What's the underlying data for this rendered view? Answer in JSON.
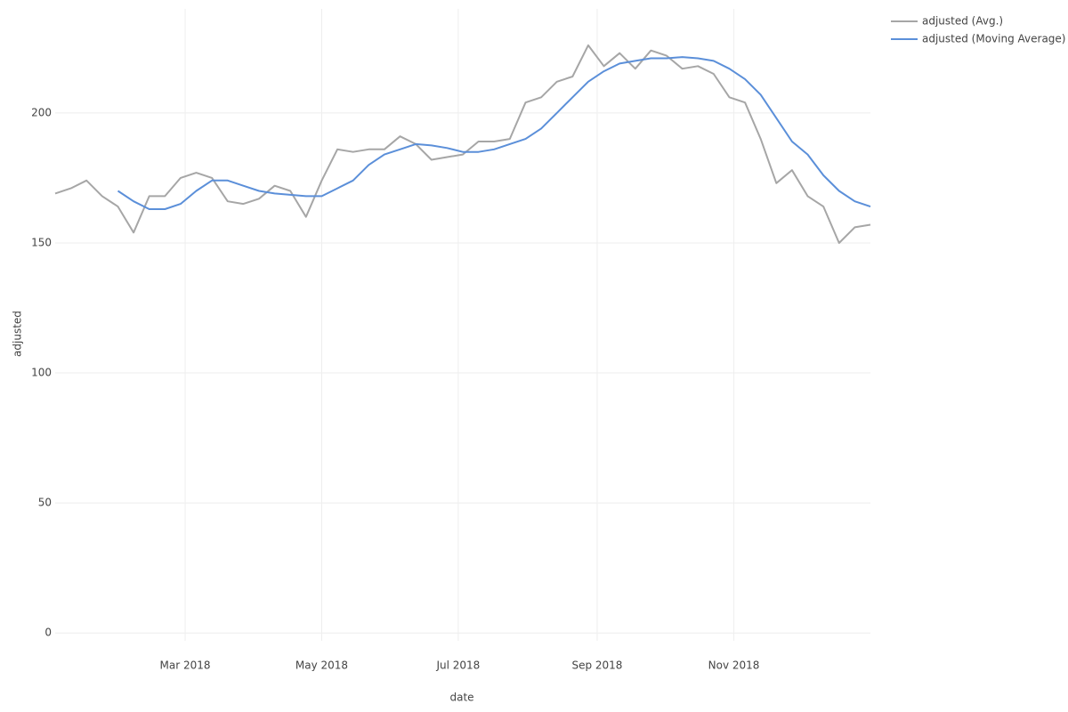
{
  "chart_data": {
    "type": "line",
    "x_label": "date",
    "y_label": "adjusted",
    "xlim": [
      0,
      52
    ],
    "xticks": [
      {
        "value": 8.29,
        "label": "Mar 2018"
      },
      {
        "value": 17.0,
        "label": "May 2018"
      },
      {
        "value": 25.71,
        "label": "Jul 2018"
      },
      {
        "value": 34.57,
        "label": "Sep 2018"
      },
      {
        "value": 43.29,
        "label": "Nov 2018"
      }
    ],
    "ylim": [
      -3,
      240
    ],
    "yticks": [
      0,
      50,
      100,
      150,
      200
    ],
    "grid": true,
    "legend": "top-right",
    "series": [
      {
        "name": "adjusted (Avg.)",
        "color": "#a6a6a6",
        "values": [
          169,
          171,
          174,
          168,
          164,
          154,
          168,
          168,
          175,
          177,
          175,
          166,
          165,
          167,
          172,
          170,
          160,
          174,
          186,
          185,
          186,
          186,
          191,
          188,
          182,
          183,
          184,
          189,
          189,
          190,
          204,
          206,
          212,
          214,
          226,
          218,
          223,
          217,
          224,
          222,
          217,
          218,
          215,
          206,
          204,
          190,
          173,
          178,
          168,
          164,
          150,
          156,
          157
        ]
      },
      {
        "name": "adjusted (Moving Average)",
        "color": "#5b8fd9",
        "values": [
          null,
          null,
          null,
          null,
          170,
          166,
          163,
          163,
          165,
          170,
          174,
          174,
          172,
          170,
          169,
          168.5,
          168,
          168,
          171,
          174,
          180,
          184,
          186,
          188,
          187.5,
          186.5,
          185,
          185,
          186,
          188,
          190,
          194,
          200,
          206,
          212,
          216,
          219,
          220,
          221,
          221,
          221.5,
          221,
          220,
          217,
          213,
          207,
          198,
          189,
          184,
          176,
          170,
          166,
          164
        ]
      }
    ]
  }
}
